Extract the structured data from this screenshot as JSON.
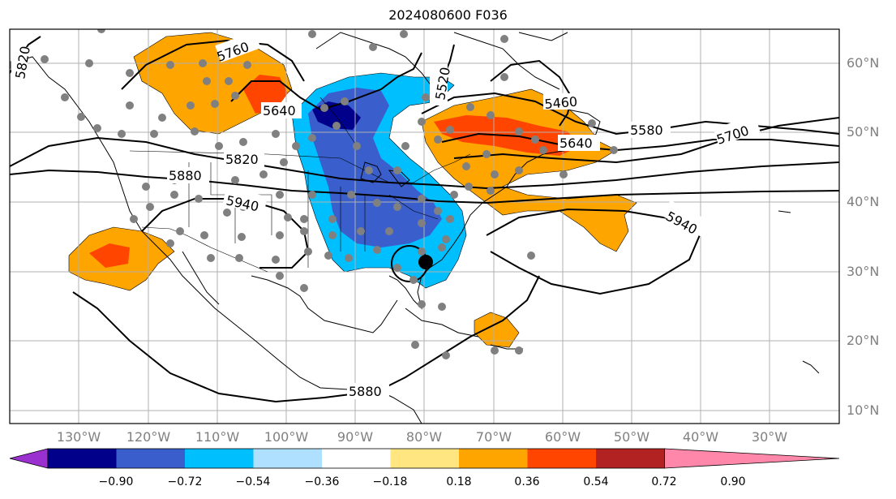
{
  "title": "2024080600 F036",
  "lat_labels": [
    "60°N",
    "50°N",
    "40°N",
    "30°N",
    "20°N",
    "10°N"
  ],
  "lon_labels": [
    "130°W",
    "120°W",
    "110°W",
    "100°W",
    "90°W",
    "80°W",
    "70°W",
    "60°W",
    "50°W",
    "40°W",
    "30°W"
  ],
  "contour_labels": [
    "5820",
    "5760",
    "5640",
    "5520",
    "5460",
    "5580",
    "5700",
    "5640",
    "5820",
    "5880",
    "5940",
    "5940",
    "5880"
  ],
  "colorbar": {
    "ticks": [
      "−0.90",
      "−0.72",
      "−0.54",
      "−0.36",
      "−0.18",
      "0.18",
      "0.36",
      "0.54",
      "0.72",
      "0.90"
    ],
    "colors": [
      "#9b30d0",
      "#00008b",
      "#3a5fcd",
      "#00bfff",
      "#b0e0ff",
      "#ffffff",
      "#ffe680",
      "#ffa500",
      "#ff4500",
      "#b22222",
      "#ff88aa"
    ]
  },
  "palette": {
    "orange": "#ffa500",
    "red": "#ff4500",
    "darkblue": "#00008b",
    "royalblue": "#3a5fcd",
    "skyblue": "#00bfff",
    "station": "#808080"
  },
  "marker": {
    "name": "storm-center",
    "lat": 31.5,
    "lon": -79.5
  }
}
